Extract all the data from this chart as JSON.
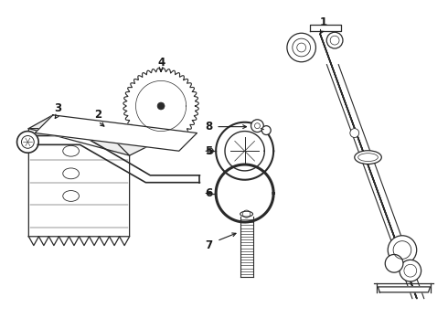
{
  "background_color": "#ffffff",
  "line_color": "#2a2a2a",
  "text_color": "#1a1a1a",
  "fig_width": 4.9,
  "fig_height": 3.6,
  "dpi": 100
}
